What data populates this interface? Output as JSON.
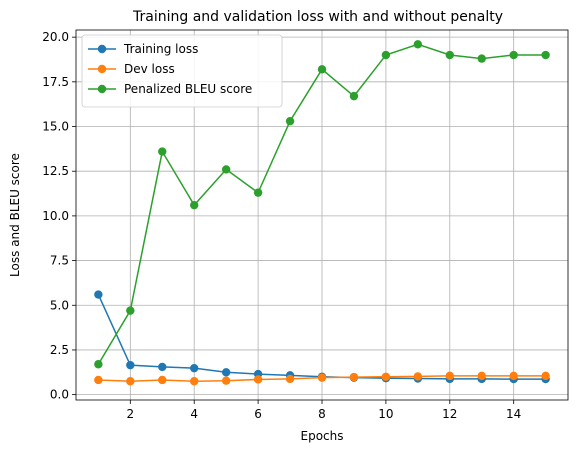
{
  "chart_data": {
    "type": "line",
    "title": "Training and validation loss with and without penalty",
    "xlabel": "Epochs",
    "ylabel": "Loss and BLEU score",
    "xlim": [
      0.3,
      15.7
    ],
    "ylim": [
      -0.3,
      20.4
    ],
    "xticks": [
      2,
      4,
      6,
      8,
      10,
      12,
      14
    ],
    "yticks": [
      0.0,
      2.5,
      5.0,
      7.5,
      10.0,
      12.5,
      15.0,
      17.5,
      20.0
    ],
    "xtick_labels": [
      "2",
      "4",
      "6",
      "8",
      "10",
      "12",
      "14"
    ],
    "ytick_labels": [
      "0.0",
      "2.5",
      "5.0",
      "7.5",
      "10.0",
      "12.5",
      "15.0",
      "17.5",
      "20.0"
    ],
    "grid": true,
    "legend_position": "top-left",
    "x": [
      1,
      2,
      3,
      4,
      5,
      6,
      7,
      8,
      9,
      10,
      11,
      12,
      13,
      14,
      15
    ],
    "series": [
      {
        "name": "Training loss",
        "color": "#1f77b4",
        "values": [
          5.6,
          1.65,
          1.55,
          1.48,
          1.25,
          1.15,
          1.08,
          1.0,
          0.95,
          0.92,
          0.9,
          0.88,
          0.88,
          0.87,
          0.87
        ]
      },
      {
        "name": "Dev loss",
        "color": "#ff7f0e",
        "values": [
          0.82,
          0.75,
          0.82,
          0.75,
          0.78,
          0.85,
          0.88,
          0.95,
          0.98,
          1.0,
          1.02,
          1.05,
          1.05,
          1.05,
          1.05
        ]
      },
      {
        "name": "Penalized BLEU score",
        "color": "#2ca02c",
        "values": [
          1.7,
          4.7,
          13.6,
          10.6,
          12.6,
          11.3,
          15.3,
          18.2,
          16.7,
          19.0,
          19.6,
          19.0,
          18.8,
          19.0,
          19.0
        ]
      }
    ]
  }
}
